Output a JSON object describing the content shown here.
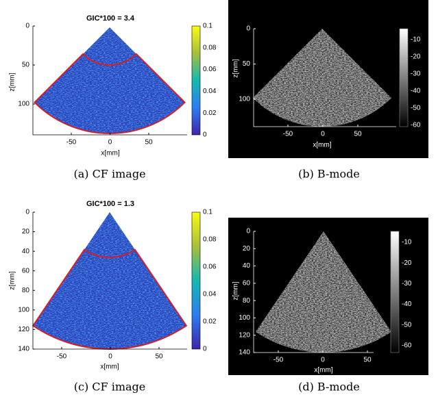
{
  "panels": [
    {
      "title": "GIC*100 = 3.4",
      "x_label": "x[mm]",
      "y_label": "z[mm]",
      "x_ticks": [
        -50,
        0,
        50
      ],
      "y_ticks": [
        0,
        50,
        100
      ],
      "colorbar_ticks": [
        0.1,
        0.08,
        0.06,
        0.04,
        0.02,
        0
      ],
      "caption": "(a) CF image"
    },
    {
      "x_label": "x[mm]",
      "y_label": "z[mm]",
      "x_ticks": [
        -50,
        0,
        50
      ],
      "y_ticks": [
        0,
        50,
        100
      ],
      "colorbar_ticks": [
        -10,
        -20,
        -30,
        -40,
        -50,
        -60
      ],
      "caption": "(b) B-mode"
    },
    {
      "title": "GIC*100 = 1.3",
      "x_label": "x[mm]",
      "y_label": "z[mm]",
      "x_ticks": [
        -50,
        0,
        50
      ],
      "y_ticks": [
        0,
        20,
        40,
        60,
        80,
        100,
        120,
        140
      ],
      "colorbar_ticks": [
        0.1,
        0.08,
        0.06,
        0.04,
        0.02,
        0
      ],
      "caption": "(c) CF image"
    },
    {
      "x_label": "x[mm]",
      "y_label": "z[mm]",
      "x_ticks": [
        -50,
        0,
        50
      ],
      "y_ticks": [
        0,
        20,
        40,
        60,
        80,
        100,
        120,
        140
      ],
      "colorbar_ticks": [
        -10,
        -20,
        -30,
        -40,
        -50,
        -60
      ],
      "caption": "(d) B-mode"
    }
  ]
}
